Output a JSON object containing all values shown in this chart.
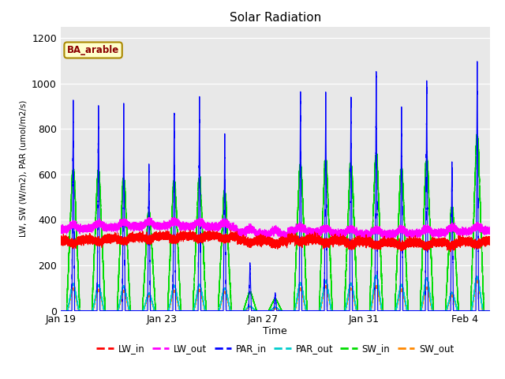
{
  "title": "Solar Radiation",
  "ylabel": "LW, SW (W/m2), PAR (umol/m2/s)",
  "xlabel": "Time",
  "annotation": "BA_arable",
  "ylim": [
    0,
    1250
  ],
  "yticks": [
    0,
    200,
    400,
    600,
    800,
    1000,
    1200
  ],
  "x_tick_labels": [
    "Jan 19",
    "Jan 23",
    "Jan 27",
    "Jan 31",
    "Feb 4"
  ],
  "x_tick_positions": [
    0,
    4,
    8,
    12,
    16
  ],
  "fig_bg_color": "#ffffff",
  "plot_bg_color": "#e8e8e8",
  "grid_color": "#ffffff",
  "series": {
    "LW_in": {
      "color": "#ff0000",
      "lw": 0.8
    },
    "LW_out": {
      "color": "#ff00ff",
      "lw": 0.8
    },
    "PAR_in": {
      "color": "#0000ff",
      "lw": 0.8
    },
    "PAR_out": {
      "color": "#00cccc",
      "lw": 0.8
    },
    "SW_in": {
      "color": "#00dd00",
      "lw": 0.8
    },
    "SW_out": {
      "color": "#ff8800",
      "lw": 0.8
    }
  },
  "legend_order": [
    "LW_in",
    "LW_out",
    "PAR_in",
    "PAR_out",
    "SW_in",
    "SW_out"
  ],
  "day_peaks_par_in": [
    910,
    900,
    870,
    640,
    880,
    930,
    770,
    210,
    80,
    960,
    960,
    940,
    1060,
    900,
    1000,
    660,
    1100
  ],
  "day_peaks_sw_in": [
    600,
    590,
    560,
    420,
    550,
    560,
    500,
    80,
    50,
    620,
    640,
    620,
    660,
    600,
    640,
    440,
    740
  ],
  "day_peaks_sw_out": [
    95,
    90,
    85,
    65,
    85,
    90,
    80,
    15,
    10,
    95,
    105,
    95,
    105,
    90,
    100,
    65,
    130
  ],
  "day_peaks_par_out": [
    115,
    110,
    105,
    75,
    108,
    112,
    98,
    20,
    15,
    118,
    128,
    118,
    150,
    112,
    140,
    78,
    145
  ],
  "lw_in_base": 315,
  "lw_out_base": 355,
  "n_days": 17
}
